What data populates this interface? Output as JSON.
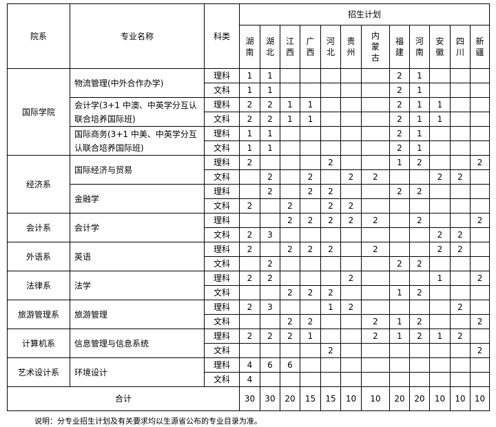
{
  "header": {
    "dept": "院系",
    "major": "专业名称",
    "type": "科类",
    "plan": "招生计划",
    "provinces": [
      "湖南",
      "湖北",
      "江西",
      "广西",
      "河北",
      "贵州",
      "内蒙古",
      "福建",
      "河南",
      "安徽",
      "四川",
      "新疆"
    ]
  },
  "departments": [
    {
      "name": "国际学院",
      "majors": [
        {
          "name": "物流管理(中外合作办学)",
          "rows": [
            {
              "type": "理科",
              "values": [
                "1",
                "1",
                "",
                "",
                "",
                "",
                "",
                "2",
                "1",
                "",
                "",
                ""
              ]
            },
            {
              "type": "文科",
              "values": [
                "1",
                "1",
                "",
                "",
                "",
                "",
                "",
                "2",
                "1",
                "",
                "",
                ""
              ]
            }
          ]
        },
        {
          "name": "会计学(3+1 中澳、中英学分互认联合培养国际班)",
          "rows": [
            {
              "type": "理科",
              "values": [
                "2",
                "2",
                "1",
                "1",
                "",
                "",
                "",
                "2",
                "1",
                "1",
                "",
                ""
              ]
            },
            {
              "type": "文科",
              "values": [
                "2",
                "2",
                "1",
                "1",
                "",
                "",
                "",
                "2",
                "1",
                "1",
                "",
                ""
              ]
            }
          ]
        },
        {
          "name": "国际商务(3+1 中美、中英学分互认联合培养国际班)",
          "rows": [
            {
              "type": "理科",
              "values": [
                "1",
                "1",
                "",
                "",
                "",
                "",
                "",
                "2",
                "1",
                "",
                "",
                ""
              ]
            },
            {
              "type": "文科",
              "values": [
                "1",
                "1",
                "",
                "",
                "",
                "",
                "",
                "2",
                "1",
                "",
                "",
                ""
              ]
            }
          ]
        }
      ]
    },
    {
      "name": "经济系",
      "majors": [
        {
          "name": "国际经济与贸易",
          "rows": [
            {
              "type": "理科",
              "values": [
                "2",
                "",
                "",
                "",
                "2",
                "",
                "",
                "1",
                "2",
                "",
                "",
                "2"
              ]
            },
            {
              "type": "文科",
              "values": [
                "",
                "2",
                "",
                "2",
                "",
                "2",
                "2",
                "",
                "",
                "2",
                "2",
                ""
              ]
            }
          ]
        },
        {
          "name": "金融学",
          "rows": [
            {
              "type": "理科",
              "values": [
                "",
                "2",
                "",
                "2",
                "2",
                "",
                "",
                "2",
                "2",
                "",
                "",
                ""
              ]
            },
            {
              "type": "文科",
              "values": [
                "2",
                "",
                "2",
                "",
                "2",
                "2",
                "",
                "",
                "",
                "",
                "",
                ""
              ]
            }
          ]
        }
      ]
    },
    {
      "name": "会计系",
      "majors": [
        {
          "name": "会计学",
          "rows": [
            {
              "type": "理科",
              "values": [
                "",
                "",
                "2",
                "2",
                "2",
                "2",
                "2",
                "",
                "2",
                "",
                "",
                "2"
              ]
            },
            {
              "type": "文科",
              "values": [
                "2",
                "3",
                "",
                "",
                "",
                "",
                "",
                "",
                "",
                "2",
                "2",
                ""
              ]
            }
          ]
        }
      ]
    },
    {
      "name": "外语系",
      "majors": [
        {
          "name": "英语",
          "rows": [
            {
              "type": "理科",
              "values": [
                "2",
                "",
                "2",
                "2",
                "2",
                "",
                "2",
                "",
                "",
                "2",
                "2",
                ""
              ]
            },
            {
              "type": "文科",
              "values": [
                "",
                "2",
                "",
                "",
                "",
                "",
                "",
                "2",
                "2",
                "",
                "",
                ""
              ]
            }
          ]
        }
      ]
    },
    {
      "name": "法律系",
      "majors": [
        {
          "name": "法学",
          "rows": [
            {
              "type": "理科",
              "values": [
                "2",
                "2",
                "",
                "",
                "",
                "2",
                "",
                "",
                "",
                "1",
                "",
                "2"
              ]
            },
            {
              "type": "文科",
              "values": [
                "",
                "",
                "2",
                "2",
                "2",
                "",
                "",
                "1",
                "2",
                "",
                "",
                ""
              ]
            }
          ]
        }
      ]
    },
    {
      "name": "旅游管理系",
      "majors": [
        {
          "name": "旅游管理",
          "rows": [
            {
              "type": "理科",
              "values": [
                "2",
                "3",
                "",
                "",
                "1",
                "2",
                "",
                "",
                "",
                "",
                "2",
                ""
              ]
            },
            {
              "type": "文科",
              "values": [
                "",
                "",
                "2",
                "2",
                "",
                "",
                "2",
                "1",
                "2",
                "",
                "",
                "2"
              ]
            }
          ]
        }
      ]
    },
    {
      "name": "计算机系",
      "majors": [
        {
          "name": "信息管理与信息系统",
          "rows": [
            {
              "type": "理科",
              "values": [
                "2",
                "2",
                "2",
                "1",
                "",
                "",
                "2",
                "1",
                "2",
                "1",
                "2",
                ""
              ]
            },
            {
              "type": "文科",
              "values": [
                "",
                "",
                "",
                "",
                "2",
                "",
                "",
                "",
                "",
                "",
                "",
                "2"
              ]
            }
          ]
        }
      ]
    },
    {
      "name": "艺术设计系",
      "majors": [
        {
          "name": "环境设计",
          "rows": [
            {
              "type": "理科",
              "values": [
                "4",
                "6",
                "6",
                "",
                "",
                "",
                "",
                "",
                "",
                "",
                "",
                ""
              ]
            },
            {
              "type": "文科",
              "values": [
                "4",
                "",
                "",
                "",
                "",
                "",
                "",
                "",
                "",
                "",
                "",
                ""
              ]
            }
          ]
        }
      ]
    }
  ],
  "total": {
    "label": "合计",
    "values": [
      "30",
      "30",
      "20",
      "15",
      "15",
      "10",
      "10",
      "20",
      "20",
      "10",
      "10",
      "10"
    ]
  },
  "note": "说明：分专业招生计划及有关要求均以生源省公布的专业目录为准。"
}
